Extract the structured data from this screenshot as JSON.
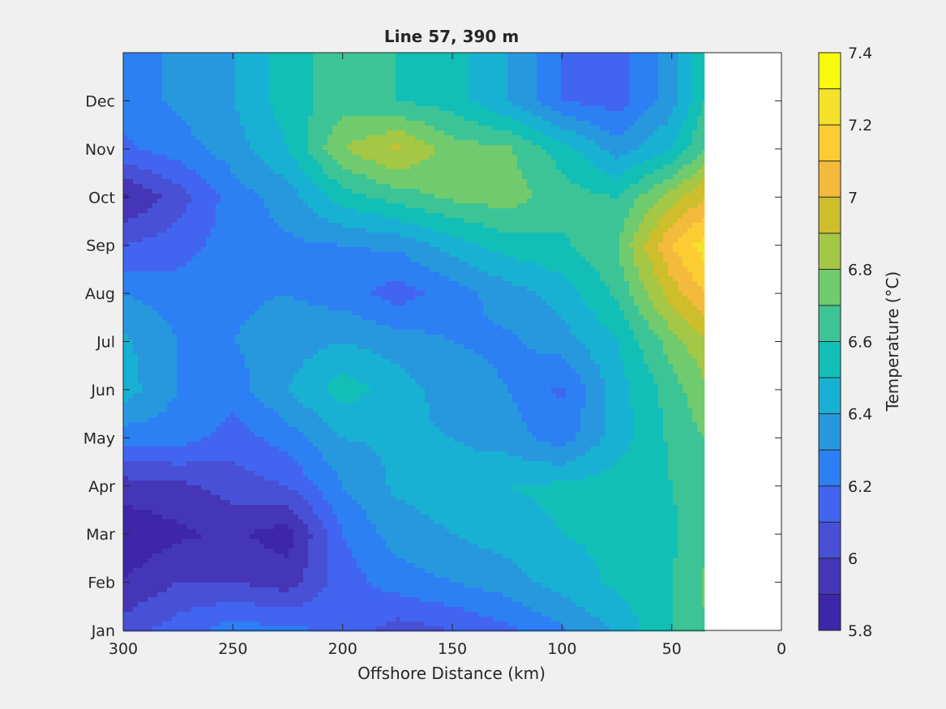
{
  "chart_data": {
    "type": "heatmap",
    "subtype": "filled-contour",
    "title": "Line 57, 390 m",
    "xlabel": "Offshore Distance (km)",
    "ylabel": "",
    "x_reversed": true,
    "xlim": [
      0,
      300
    ],
    "xticks": [
      300,
      250,
      200,
      150,
      100,
      50,
      0
    ],
    "y_categories": [
      "Jan",
      "Feb",
      "Mar",
      "Apr",
      "May",
      "Jun",
      "Jul",
      "Aug",
      "Sep",
      "Oct",
      "Nov",
      "Dec"
    ],
    "colorbar": {
      "label": "Temperature (°C)",
      "range": [
        5.8,
        7.4
      ],
      "step": 0.1,
      "tick_values": [
        5.8,
        6,
        6.2,
        6.4,
        6.6,
        6.8,
        7,
        7.2,
        7.4
      ],
      "tick_labels": [
        "5.8",
        "6",
        "6.2",
        "6.4",
        "6.6",
        "6.8",
        "7",
        "7.2",
        "7.4"
      ],
      "colors": [
        "#3e26a8",
        "#4536b8",
        "#4851d6",
        "#4165f0",
        "#2c80f3",
        "#2798de",
        "#18b1d3",
        "#12bfb7",
        "#3cc496",
        "#6fcb6e",
        "#a4c745",
        "#cebe2c",
        "#f4ba3c",
        "#fccd33",
        "#f4e22b",
        "#f9fb0e"
      ]
    },
    "data_coverage_x_min": 35,
    "grid": false,
    "values": {
      "x": [
        300,
        275,
        250,
        225,
        200,
        175,
        150,
        125,
        100,
        75,
        50,
        35
      ],
      "y": [
        "Jan",
        "Feb",
        "Mar",
        "Apr",
        "May",
        "Jun",
        "Jul",
        "Aug",
        "Sep",
        "Oct",
        "Nov",
        "Dec"
      ],
      "z": [
        [
          6.05,
          6.15,
          6.25,
          6.22,
          6.18,
          6.05,
          6.1,
          6.18,
          6.28,
          6.42,
          6.6,
          6.68
        ],
        [
          5.9,
          6.0,
          6.0,
          5.95,
          6.15,
          6.25,
          6.3,
          6.35,
          6.45,
          6.52,
          6.6,
          6.72
        ],
        [
          5.82,
          5.88,
          5.92,
          5.85,
          6.2,
          6.35,
          6.4,
          6.45,
          6.5,
          6.52,
          6.58,
          6.66
        ],
        [
          5.95,
          5.97,
          6.05,
          6.1,
          6.3,
          6.42,
          6.45,
          6.5,
          6.52,
          6.55,
          6.6,
          6.68
        ],
        [
          6.25,
          6.25,
          6.15,
          6.25,
          6.4,
          6.42,
          6.4,
          6.35,
          6.25,
          6.45,
          6.62,
          6.7
        ],
        [
          6.45,
          6.3,
          6.25,
          6.4,
          6.55,
          6.45,
          6.35,
          6.3,
          6.18,
          6.45,
          6.65,
          6.78
        ],
        [
          6.42,
          6.3,
          6.3,
          6.35,
          6.4,
          6.35,
          6.3,
          6.28,
          6.35,
          6.5,
          6.75,
          6.88
        ],
        [
          6.3,
          6.25,
          6.28,
          6.3,
          6.25,
          6.15,
          6.25,
          6.35,
          6.45,
          6.62,
          6.95,
          7.1
        ],
        [
          6.1,
          6.15,
          6.25,
          6.28,
          6.3,
          6.32,
          6.45,
          6.55,
          6.58,
          6.7,
          7.1,
          7.25
        ],
        [
          5.88,
          6.05,
          6.25,
          6.35,
          6.55,
          6.65,
          6.72,
          6.75,
          6.65,
          6.6,
          6.85,
          7.0
        ],
        [
          6.18,
          6.25,
          6.35,
          6.5,
          6.8,
          6.92,
          6.75,
          6.72,
          6.55,
          6.35,
          6.5,
          6.7
        ],
        [
          6.25,
          6.32,
          6.4,
          6.55,
          6.65,
          6.6,
          6.55,
          6.4,
          6.2,
          6.15,
          6.35,
          6.6
        ]
      ]
    }
  }
}
